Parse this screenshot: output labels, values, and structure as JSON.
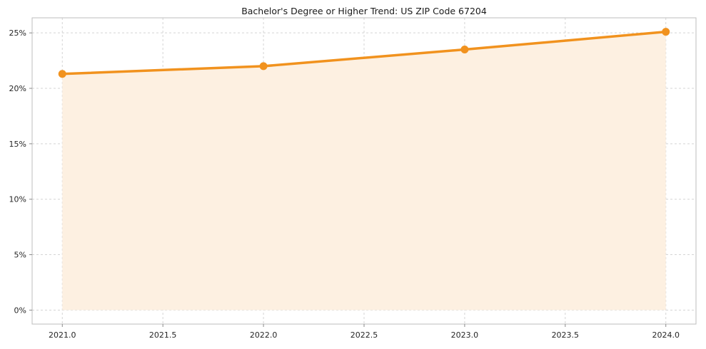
{
  "chart_data": {
    "type": "line",
    "title": "Bachelor's Degree or Higher Trend: US ZIP Code 67204",
    "xlabel": "",
    "ylabel": "",
    "x": [
      2021,
      2022,
      2023,
      2024
    ],
    "series": [
      {
        "name": "Bachelor's Degree or Higher (%)",
        "values": [
          21.3,
          22.0,
          23.5,
          25.1
        ]
      }
    ],
    "area_baseline": 0,
    "xlim": [
      2020.85,
      2024.15
    ],
    "ylim": [
      -1.26,
      26.36
    ],
    "xticks": {
      "values": [
        2021.0,
        2021.5,
        2022.0,
        2022.5,
        2023.0,
        2023.5,
        2024.0
      ],
      "labels": [
        "2021.0",
        "2021.5",
        "2022.0",
        "2022.5",
        "2023.0",
        "2023.5",
        "2024.0"
      ]
    },
    "yticks": {
      "values": [
        0,
        5,
        10,
        15,
        20,
        25
      ],
      "labels": [
        "0%",
        "5%",
        "10%",
        "15%",
        "20%",
        "25%"
      ]
    },
    "grid": true,
    "legend": "none",
    "line_color": "#f1921e",
    "fill_color": "#fdf0e1",
    "grid_color": "#d4d4d4",
    "axis_color": "#bdbdbd",
    "tick_color": "#8a8a8a",
    "text_color": "#262626"
  }
}
